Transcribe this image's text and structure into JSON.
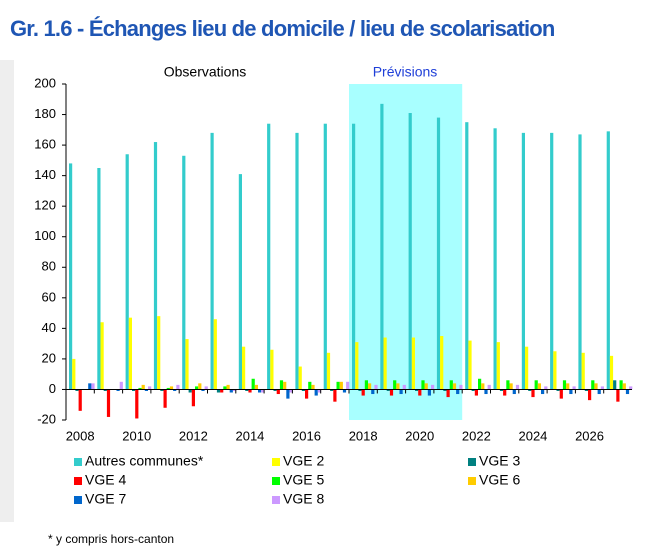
{
  "chart_data": {
    "type": "bar",
    "title": "Gr. 1.6 - Échanges lieu de domicile / lieu de scolarisation",
    "annotations": [
      "Observations",
      "Prévisions"
    ],
    "note": "* y compris hors-canton",
    "categories": [
      2008,
      null,
      2010,
      null,
      2012,
      null,
      2014,
      null,
      2016,
      null,
      2018,
      null,
      2020,
      null,
      2022,
      null,
      2024,
      null,
      2026,
      null
    ],
    "shaded_range": [
      10,
      13
    ],
    "ylim": [
      -20,
      200
    ],
    "yticks": [
      -20,
      0,
      20,
      40,
      60,
      80,
      100,
      120,
      140,
      160,
      180,
      200
    ],
    "series": [
      {
        "name": "Autres communes*",
        "color": "#33cccc",
        "values": [
          148,
          145,
          154,
          162,
          153,
          168,
          141,
          174,
          168,
          174,
          174,
          187,
          181,
          178,
          175,
          171,
          168,
          168,
          167,
          169
        ]
      },
      {
        "name": "VGE 2",
        "color": "#ffff00",
        "values": [
          20,
          44,
          47,
          48,
          33,
          46,
          28,
          26,
          15,
          24,
          31,
          34,
          34,
          35,
          32,
          31,
          28,
          25,
          24,
          22
        ]
      },
      {
        "name": "VGE 3",
        "color": "#008080",
        "values": [
          -1,
          -1,
          -1,
          -1,
          -2,
          -2,
          -1,
          -1,
          -1,
          -1,
          -1,
          -1,
          -1,
          -1,
          -1,
          -1,
          -1,
          -1,
          -1,
          6
        ]
      },
      {
        "name": "VGE 4",
        "color": "#ff0000",
        "values": [
          -14,
          -18,
          -19,
          -12,
          -11,
          -2,
          -2,
          -3,
          -6,
          -8,
          -4,
          -4,
          -4,
          -5,
          -4,
          -4,
          -5,
          -6,
          -7,
          -8
        ]
      },
      {
        "name": "VGE 5",
        "color": "#00ff00",
        "values": [
          0,
          0,
          1,
          1,
          2,
          2,
          7,
          6,
          5,
          5,
          6,
          6,
          6,
          6,
          7,
          6,
          6,
          6,
          6,
          6
        ]
      },
      {
        "name": "VGE 6",
        "color": "#ffcc00",
        "values": [
          0,
          0,
          3,
          2,
          4,
          3,
          3,
          5,
          3,
          5,
          4,
          4,
          4,
          4,
          4,
          4,
          4,
          4,
          4,
          4
        ]
      },
      {
        "name": "VGE 7",
        "color": "#0066cc",
        "values": [
          4,
          -1,
          -1,
          -1,
          -1,
          -2,
          -2,
          -6,
          -4,
          -2,
          -3,
          -3,
          -4,
          -3,
          -3,
          -3,
          -3,
          -3,
          -3,
          -3
        ]
      },
      {
        "name": "VGE 8",
        "color": "#cc99ff",
        "values": [
          4,
          5,
          2,
          3,
          2,
          -1,
          -2,
          -2,
          -2,
          5,
          3,
          3,
          3,
          3,
          3,
          3,
          2,
          2,
          2,
          2
        ]
      }
    ]
  }
}
